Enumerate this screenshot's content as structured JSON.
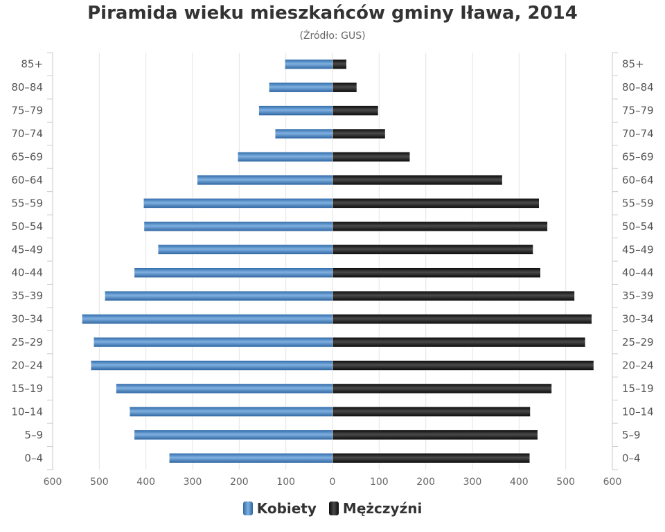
{
  "chart_data": {
    "type": "bar",
    "orientation": "horizontal-population-pyramid",
    "title": "Piramida wieku mieszkańców gminy Iława, 2014",
    "subtitle": "(Źródło: GUS)",
    "categories": [
      "85+",
      "80–84",
      "75–79",
      "70–74",
      "65–69",
      "60–64",
      "55–59",
      "50–54",
      "45–49",
      "40–44",
      "35–39",
      "30–34",
      "25–29",
      "20–24",
      "15–19",
      "10–14",
      "5–9",
      "0–4"
    ],
    "series": [
      {
        "name": "Kobiety",
        "color": "#3d7ab8",
        "side": "left",
        "values": [
          102,
          136,
          158,
          123,
          203,
          290,
          405,
          404,
          374,
          425,
          488,
          537,
          512,
          518,
          464,
          435,
          425,
          350
        ]
      },
      {
        "name": "Mężczyźni",
        "color": "#1a1a1a",
        "side": "right",
        "values": [
          30,
          52,
          98,
          113,
          166,
          364,
          443,
          461,
          430,
          446,
          519,
          556,
          542,
          560,
          470,
          424,
          440,
          423
        ]
      }
    ],
    "xlim": [
      -600,
      600
    ],
    "x_ticks": [
      "600",
      "500",
      "400",
      "300",
      "200",
      "100",
      "0",
      "100",
      "200",
      "300",
      "400",
      "500",
      "600"
    ],
    "grid": true,
    "legend_position": "bottom"
  }
}
